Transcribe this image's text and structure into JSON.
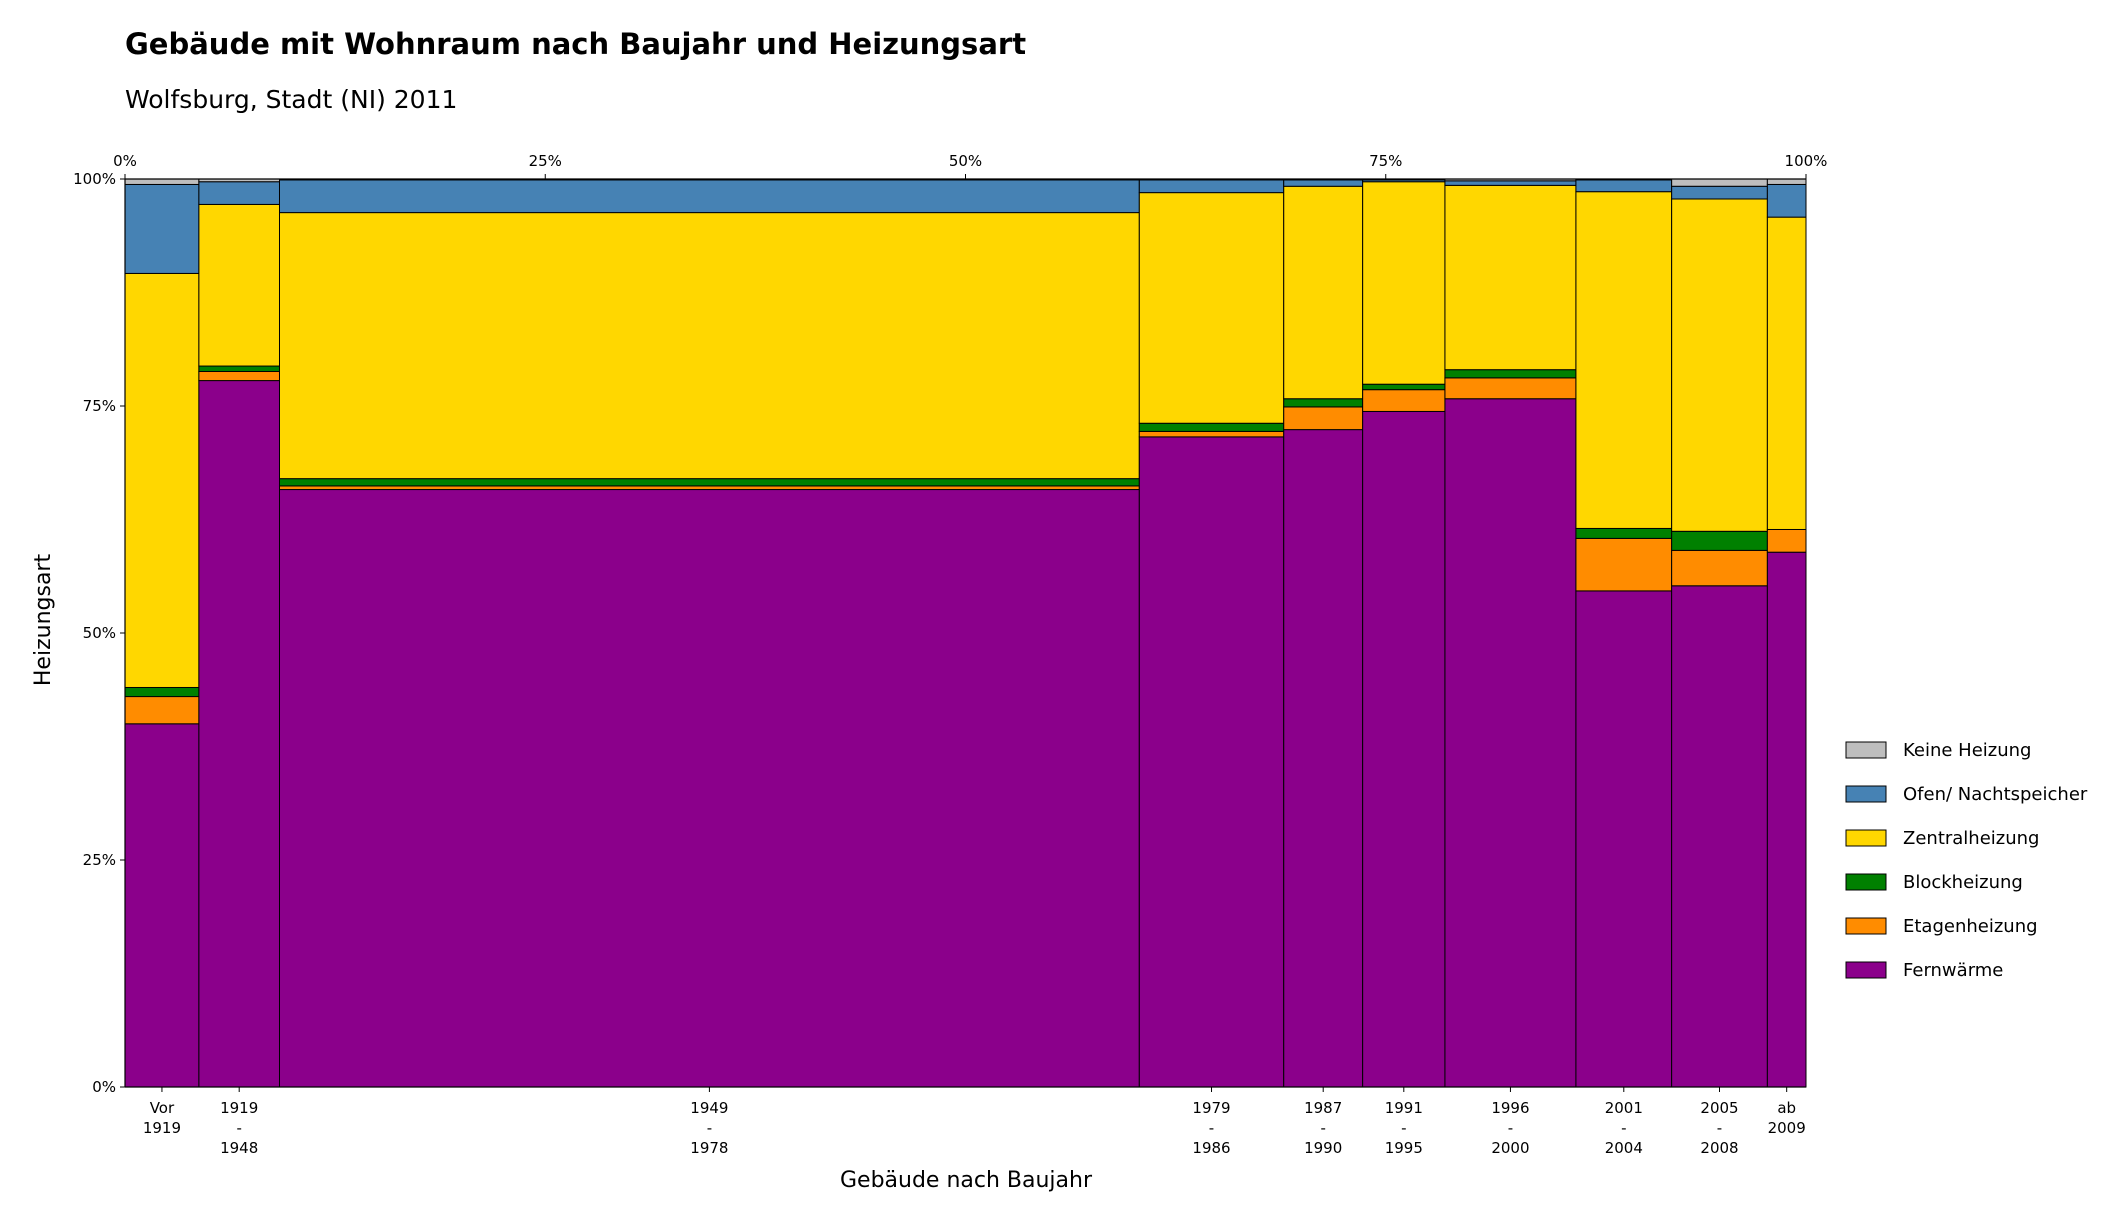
{
  "chart_data": {
    "type": "mosaic",
    "title": "Gebäude mit Wohnraum nach Baujahr und Heizungsart",
    "subtitle": "Wolfsburg, Stadt (NI) 2011",
    "xlabel": "Gebäude nach Baujahr",
    "ylabel": "Heizungsart",
    "x_top_ticks": [
      "0%",
      "25%",
      "50%",
      "75%",
      "100%"
    ],
    "y_ticks": [
      "0%",
      "25%",
      "50%",
      "75%",
      "100%"
    ],
    "legend": {
      "position": "right"
    },
    "series": [
      {
        "name": "Fernwärme",
        "color": "#8b008b"
      },
      {
        "name": "Etagenheizung",
        "color": "#ff8c00"
      },
      {
        "name": "Blockheizung",
        "color": "#008000"
      },
      {
        "name": "Zentralheizung",
        "color": "#ffd700"
      },
      {
        "name": "Ofen/ Nachtspeicher",
        "color": "#4682b4"
      },
      {
        "name": "Keine Heizung",
        "color": "#bebebe"
      }
    ],
    "categories": [
      {
        "label": [
          "Vor",
          "1919"
        ],
        "width": 4.4,
        "values": [
          40.0,
          3.0,
          1.0,
          45.6,
          9.8,
          0.6
        ]
      },
      {
        "label": [
          "1919",
          "-",
          "1948"
        ],
        "width": 4.8,
        "values": [
          77.8,
          1.0,
          0.6,
          17.8,
          2.5,
          0.3
        ]
      },
      {
        "label": [
          "1949",
          "-",
          "1978"
        ],
        "width": 51.2,
        "values": [
          65.8,
          0.4,
          0.8,
          29.3,
          3.6,
          0.1
        ]
      },
      {
        "label": [
          "1979",
          "-",
          "1986"
        ],
        "width": 8.6,
        "values": [
          71.6,
          0.6,
          0.9,
          25.4,
          1.4,
          0.1
        ]
      },
      {
        "label": [
          "1987",
          "-",
          "1990"
        ],
        "width": 4.7,
        "values": [
          72.4,
          2.5,
          0.9,
          23.4,
          0.7,
          0.1
        ]
      },
      {
        "label": [
          "1991",
          "-",
          "1995"
        ],
        "width": 4.9,
        "values": [
          74.4,
          2.4,
          0.6,
          22.3,
          0.2,
          0.1
        ]
      },
      {
        "label": [
          "1996",
          "-",
          "2000"
        ],
        "width": 7.8,
        "values": [
          75.8,
          2.3,
          0.9,
          20.3,
          0.5,
          0.2
        ]
      },
      {
        "label": [
          "2001",
          "-",
          "2004"
        ],
        "width": 5.7,
        "values": [
          54.8,
          5.8,
          1.1,
          37.2,
          1.3,
          0.1
        ]
      },
      {
        "label": [
          "2005",
          "-",
          "2008"
        ],
        "width": 5.7,
        "values": [
          55.2,
          3.9,
          2.1,
          36.6,
          1.4,
          0.8
        ]
      },
      {
        "label": [
          "ab",
          "2009"
        ],
        "width": 2.3,
        "values": [
          58.9,
          2.5,
          0.0,
          34.4,
          3.6,
          0.6
        ]
      }
    ]
  }
}
